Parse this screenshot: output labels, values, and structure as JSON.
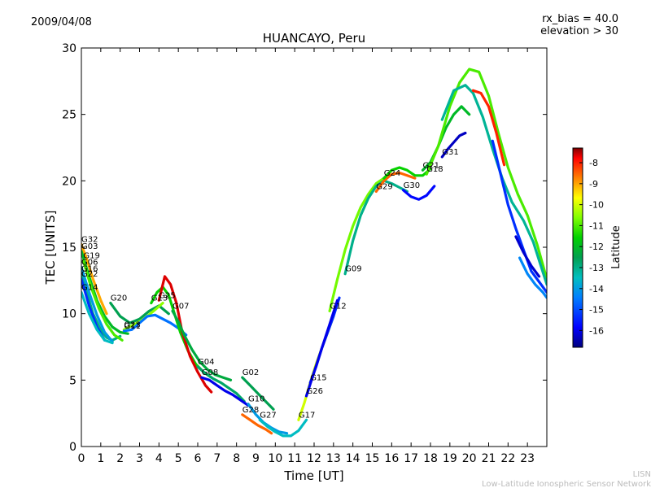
{
  "header": {
    "date": "2009/04/08",
    "bias_line1": "rx_bias = 40.0",
    "bias_line2": "elevation > 30"
  },
  "footer": {
    "line1": "LISN",
    "line2": "Low-Latitude Ionospheric Sensor Network"
  },
  "colormap_stops": [
    "#00007f",
    "#0000ff",
    "#007fff",
    "#00bfbf",
    "#00a050",
    "#00d000",
    "#80ff00",
    "#ffff00",
    "#ff8000",
    "#ff0000",
    "#7f0000"
  ],
  "chart_data": {
    "type": "line",
    "title": "HUANCAYO, Peru",
    "xlabel": "Time [UT]",
    "ylabel": "TEC [UNITS]",
    "xlim": [
      0,
      24
    ],
    "ylim": [
      0,
      30
    ],
    "xticks": [
      "0",
      "1",
      "2",
      "3",
      "4",
      "5",
      "6",
      "7",
      "8",
      "9",
      "10",
      "11",
      "12",
      "13",
      "14",
      "15",
      "16",
      "17",
      "18",
      "19",
      "20",
      "21",
      "22",
      "23"
    ],
    "yticks": [
      "0",
      "5",
      "10",
      "15",
      "20",
      "25",
      "30"
    ],
    "colorbar": {
      "label": "Latitude",
      "range": [
        -16.8,
        -7.3
      ],
      "ticks": [
        "-8",
        "-9",
        "-10",
        "-11",
        "-12",
        "-13",
        "-14",
        "-15",
        "-16"
      ]
    },
    "series": [
      {
        "name": "G16",
        "lat": -13.5,
        "x": [
          0,
          0.3,
          0.6,
          1.0,
          1.3,
          1.6,
          2.0
        ],
        "y": [
          13.0,
          11.5,
          10.0,
          8.8,
          8.2,
          8.0,
          8.3
        ]
      },
      {
        "name": "G32",
        "lat": -9.5,
        "x": [
          0,
          0.3,
          0.6,
          1.0,
          1.3
        ],
        "y": [
          15.2,
          14.0,
          12.6,
          11.0,
          10.0
        ]
      },
      {
        "name": "G03",
        "lat": -12.5,
        "x": [
          0,
          0.4,
          0.8,
          1.2,
          1.6,
          2.0,
          2.4
        ],
        "y": [
          14.7,
          12.8,
          11.0,
          9.8,
          9.0,
          8.6,
          8.5
        ]
      },
      {
        "name": "G19",
        "lat": -11.5,
        "x": [
          0.1,
          0.5,
          0.9,
          1.3,
          1.7,
          2.1
        ],
        "y": [
          14.0,
          12.0,
          10.4,
          9.2,
          8.4,
          8.0
        ]
      },
      {
        "name": "G06",
        "lat": -14.5,
        "x": [
          0,
          0.4,
          0.8,
          1.2,
          1.6
        ],
        "y": [
          13.5,
          11.6,
          9.9,
          8.6,
          7.9
        ]
      },
      {
        "name": "G22",
        "lat": -15.5,
        "x": [
          0,
          0.4,
          0.8,
          1.2
        ],
        "y": [
          12.6,
          10.6,
          9.0,
          8.0
        ]
      },
      {
        "name": "G14",
        "lat": -14.0,
        "x": [
          0,
          0.4,
          0.8,
          1.2,
          1.6
        ],
        "y": [
          11.6,
          10.0,
          8.8,
          8.0,
          7.8
        ]
      },
      {
        "name": "G20",
        "lat": -13.0,
        "x": [
          1.5,
          2.0,
          2.5,
          3.0,
          3.5,
          4.0,
          4.5
        ],
        "y": [
          10.8,
          9.8,
          9.3,
          9.6,
          10.2,
          10.6,
          10.0
        ]
      },
      {
        "name": "G23",
        "lat": -11.0,
        "x": [
          2.2,
          2.6,
          3.0,
          3.4,
          3.8,
          4.2
        ],
        "y": [
          8.8,
          9.1,
          9.4,
          9.8,
          10.3,
          10.8
        ]
      },
      {
        "name": "G11",
        "lat": -15.0,
        "x": [
          2.2,
          2.6,
          3.0,
          3.4,
          3.8,
          4.2,
          4.6,
          5.0,
          5.4
        ],
        "y": [
          8.7,
          8.8,
          9.3,
          9.8,
          9.9,
          9.6,
          9.3,
          8.9,
          8.4
        ]
      },
      {
        "name": "G13",
        "lat": -12.0,
        "x": [
          3.6,
          3.9,
          4.2,
          4.5,
          4.8,
          5.1,
          5.5,
          5.9,
          6.3,
          6.7
        ],
        "y": [
          10.8,
          11.6,
          12.0,
          11.4,
          10.0,
          8.6,
          7.2,
          6.2,
          5.6,
          5.2
        ]
      },
      {
        "name": "G25",
        "lat": -8.0,
        "x": [
          4.0,
          4.3,
          4.6,
          4.9,
          5.2,
          5.6,
          6.0,
          6.4,
          6.7
        ],
        "y": [
          11.0,
          12.8,
          12.2,
          10.8,
          8.6,
          6.8,
          5.6,
          4.6,
          4.1
        ]
      },
      {
        "name": "G07",
        "lat": -12.8,
        "x": [
          4.7,
          5.0,
          5.3,
          5.7,
          6.1,
          6.5,
          6.9,
          7.3,
          7.7
        ],
        "y": [
          10.2,
          9.4,
          8.4,
          7.3,
          6.4,
          5.8,
          5.4,
          5.2,
          5.0
        ]
      },
      {
        "name": "G04",
        "lat": -13.2,
        "x": [
          6.0,
          6.4,
          6.8,
          7.2,
          7.6,
          8.0,
          8.4
        ],
        "y": [
          6.0,
          5.5,
          5.1,
          4.8,
          4.4,
          4.0,
          3.4
        ]
      },
      {
        "name": "G08",
        "lat": -16.0,
        "x": [
          6.2,
          6.6,
          7.0,
          7.4,
          7.8,
          8.2,
          8.6
        ],
        "y": [
          5.2,
          5.0,
          4.6,
          4.2,
          3.9,
          3.5,
          3.1
        ]
      },
      {
        "name": "G02",
        "lat": -13.0,
        "x": [
          8.3,
          8.7,
          9.1,
          9.5,
          9.9
        ],
        "y": [
          5.2,
          4.6,
          4.0,
          3.4,
          2.8
        ]
      },
      {
        "name": "G28",
        "lat": -9.0,
        "x": [
          8.3,
          8.7,
          9.1,
          9.5,
          9.8
        ],
        "y": [
          2.4,
          2.0,
          1.6,
          1.3,
          1.0
        ]
      },
      {
        "name": "G10",
        "lat": -14.5,
        "x": [
          8.6,
          9.0,
          9.4,
          9.8,
          10.2,
          10.6
        ],
        "y": [
          3.2,
          2.4,
          1.8,
          1.4,
          1.1,
          1.0
        ]
      },
      {
        "name": "G27",
        "lat": -14.0,
        "x": [
          9.2,
          9.6,
          10.0,
          10.4,
          10.8,
          11.2,
          11.6
        ],
        "y": [
          2.0,
          1.5,
          1.1,
          0.8,
          0.8,
          1.2,
          2.0
        ]
      },
      {
        "name": "G17",
        "lat": -10.5,
        "x": [
          11.2,
          11.5,
          11.8,
          12.1,
          12.4,
          12.7,
          13.0
        ],
        "y": [
          2.0,
          3.3,
          4.8,
          6.2,
          7.4,
          8.6,
          9.8
        ]
      },
      {
        "name": "G15",
        "lat": -15.5,
        "x": [
          11.8,
          12.1,
          12.4,
          12.7,
          13.0,
          13.3
        ],
        "y": [
          4.8,
          6.0,
          7.4,
          8.6,
          9.8,
          11.2
        ]
      },
      {
        "name": "G26",
        "lat": -16.0,
        "x": [
          11.6,
          12.0,
          12.4,
          12.8,
          13.2
        ],
        "y": [
          3.8,
          5.6,
          7.4,
          9.2,
          11.0
        ]
      },
      {
        "name": "G12",
        "lat": -11.2,
        "x": [
          12.8,
          13.2,
          13.6,
          14.0,
          14.4,
          14.8,
          15.2,
          15.6
        ],
        "y": [
          10.2,
          12.6,
          14.8,
          16.6,
          18.0,
          19.0,
          19.8,
          20.2
        ]
      },
      {
        "name": "G09",
        "lat": -13.5,
        "x": [
          13.6,
          14.0,
          14.4,
          14.8,
          15.2,
          15.6,
          16.0,
          16.4,
          16.8
        ],
        "y": [
          13.0,
          15.5,
          17.4,
          18.7,
          19.6,
          20.0,
          19.8,
          19.5,
          19.2
        ]
      },
      {
        "name": "G29",
        "lat": -9.0,
        "x": [
          15.2,
          15.6,
          16.0,
          16.4,
          16.8,
          17.2
        ],
        "y": [
          19.2,
          20.0,
          20.5,
          20.6,
          20.4,
          20.2
        ]
      },
      {
        "name": "G24",
        "lat": -12.0,
        "x": [
          15.6,
          16.0,
          16.4,
          16.8,
          17.2,
          17.6,
          18.0
        ],
        "y": [
          20.2,
          20.8,
          21.0,
          20.8,
          20.4,
          20.4,
          20.9
        ]
      },
      {
        "name": "G30",
        "lat": -15.8,
        "x": [
          16.6,
          17.0,
          17.4,
          17.8,
          18.2
        ],
        "y": [
          19.3,
          18.8,
          18.6,
          18.9,
          19.6
        ]
      },
      {
        "name": "G21",
        "lat": -12.5,
        "x": [
          17.6,
          18.0,
          18.4,
          18.8,
          19.2,
          19.6,
          20.0
        ],
        "y": [
          20.8,
          21.4,
          22.6,
          24.0,
          25.0,
          25.6,
          25.0
        ]
      },
      {
        "name": "G31",
        "lat": -16.3,
        "x": [
          18.6,
          18.9,
          19.2,
          19.5,
          19.8
        ],
        "y": [
          21.8,
          22.4,
          22.9,
          23.4,
          23.6
        ]
      },
      {
        "name": "G18",
        "lat": -11.5,
        "x": [
          17.8,
          18.4,
          19.0,
          19.5,
          20.0,
          20.5,
          21.0,
          21.5,
          22.0,
          22.5,
          23.0,
          23.5,
          24.0
        ],
        "y": [
          20.5,
          22.6,
          25.6,
          27.4,
          28.4,
          28.2,
          26.4,
          23.6,
          21.0,
          19.0,
          17.4,
          15.2,
          12.6
        ]
      },
      {
        "name": "",
        "lat": -13.6,
        "x": [
          18.6,
          19.2,
          19.8,
          20.2,
          20.7,
          21.2,
          21.7,
          22.2,
          22.8,
          23.3,
          24.0
        ],
        "y": [
          24.6,
          26.8,
          27.2,
          26.6,
          24.8,
          22.4,
          20.2,
          18.4,
          17.0,
          15.4,
          12.2
        ]
      },
      {
        "name": "",
        "lat": -8.5,
        "x": [
          20.2,
          20.6,
          21.0,
          21.4,
          21.8
        ],
        "y": [
          26.8,
          26.6,
          25.6,
          23.6,
          21.2
        ]
      },
      {
        "name": "",
        "lat": -15.5,
        "x": [
          21.2,
          21.6,
          22.0,
          22.4,
          22.8,
          23.2,
          23.6,
          24.0
        ],
        "y": [
          23.0,
          20.6,
          18.2,
          16.4,
          14.8,
          13.2,
          12.4,
          11.6
        ]
      },
      {
        "name": "",
        "lat": -16.2,
        "x": [
          22.4,
          22.8,
          23.2,
          23.6
        ],
        "y": [
          15.8,
          14.6,
          13.6,
          12.8
        ]
      },
      {
        "name": "",
        "lat": -14.8,
        "x": [
          22.6,
          23.0,
          23.4,
          23.8,
          24.0
        ],
        "y": [
          14.2,
          13.0,
          12.2,
          11.6,
          11.2
        ]
      }
    ]
  }
}
